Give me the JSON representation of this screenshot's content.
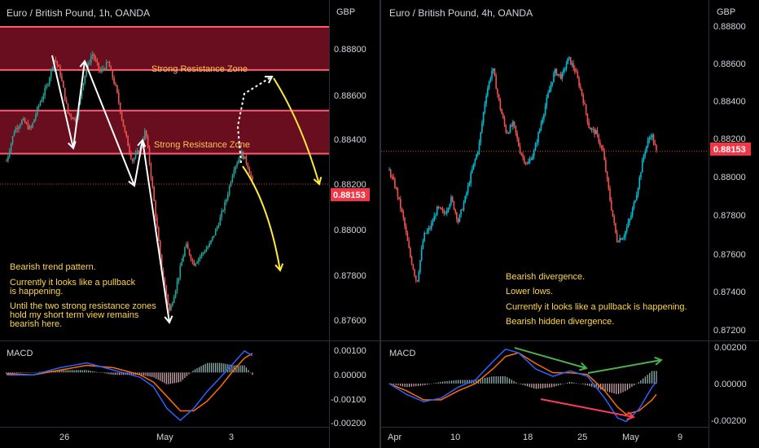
{
  "colors": {
    "background": "#000000",
    "up": "#26a69a",
    "up_bright": "#00bcd4",
    "down": "#ef5350",
    "zone_fill": "#7a1024",
    "zone_line": "#ff5a6e",
    "price_line": "#f23645",
    "annotation_yellow": "#ffeb3b",
    "annotation_white": "#ffffff",
    "macd_line": "#2962ff",
    "signal_line": "#ff6d00",
    "green_arrow": "#4caf50",
    "red_arrow": "#ff3b5c"
  },
  "left": {
    "title": "Euro / British Pound, 1h, OANDA",
    "currency": "GBP",
    "price_ticks": [
      "0.88800",
      "0.88600",
      "0.88400",
      "0.88200",
      "0.88000",
      "0.87800",
      "0.87600"
    ],
    "price_tag": "0.88153",
    "zone_label_top": "Strong Resistance Zone",
    "zone_label_mid": "Strong Resistance Zone",
    "notes": [
      "Bearish trend pattern.",
      "Currently it looks like a pullback",
      "is happening.",
      "Until the two strong resistance zones",
      "hold my short term view remains",
      "bearish here."
    ],
    "macd_label": "MACD",
    "macd_ticks": [
      "0.00100",
      "0.00000",
      "-0.00100",
      "-0.00200"
    ],
    "time_labels": [
      "26",
      "May",
      "3"
    ]
  },
  "right": {
    "title": "Euro / British Pound, 4h, OANDA",
    "currency": "GBP",
    "price_ticks": [
      "0.88800",
      "0.88600",
      "0.88400",
      "0.88200",
      "0.88000",
      "0.87800",
      "0.87600",
      "0.87400",
      "0.87200"
    ],
    "price_tag": "0.88153",
    "notes": [
      "Bearish divergence.",
      "Lower lows.",
      "Currently it looks like a pullback is happening.",
      "Bearish hidden divergence."
    ],
    "macd_label": "MACD",
    "macd_ticks": [
      "0.00200",
      "0.00000",
      "-0.00200"
    ],
    "time_labels": [
      "Apr",
      "10",
      "18",
      "25",
      "May",
      "9"
    ]
  },
  "chart_data": [
    {
      "type": "candlestick",
      "title": "Euro / British Pound, 1h, OANDA",
      "ylabel": "GBP",
      "ylim": [
        0.8752,
        0.8882
      ],
      "last_price": 0.88153,
      "resistance_zones": [
        [
          0.8863,
          0.8881
        ],
        [
          0.8828,
          0.8846
        ]
      ],
      "close_path": [
        [
          0,
          0.8825
        ],
        [
          6,
          0.8838
        ],
        [
          12,
          0.8842
        ],
        [
          18,
          0.8838
        ],
        [
          24,
          0.8848
        ],
        [
          30,
          0.8856
        ],
        [
          36,
          0.8868
        ],
        [
          40,
          0.8862
        ],
        [
          46,
          0.8845
        ],
        [
          52,
          0.8842
        ],
        [
          58,
          0.886
        ],
        [
          64,
          0.887
        ],
        [
          70,
          0.8862
        ],
        [
          76,
          0.8866
        ],
        [
          82,
          0.8855
        ],
        [
          88,
          0.8838
        ],
        [
          94,
          0.8825
        ],
        [
          100,
          0.883
        ],
        [
          104,
          0.8838
        ],
        [
          110,
          0.881
        ],
        [
          116,
          0.878
        ],
        [
          122,
          0.8762
        ],
        [
          128,
          0.8775
        ],
        [
          134,
          0.879
        ],
        [
          140,
          0.8782
        ],
        [
          146,
          0.8786
        ],
        [
          152,
          0.879
        ],
        [
          158,
          0.8798
        ],
        [
          164,
          0.8808
        ],
        [
          170,
          0.8822
        ],
        [
          176,
          0.8828
        ],
        [
          180,
          0.8824
        ],
        [
          184,
          0.8816
        ]
      ],
      "macd": {
        "ylim": [
          -0.0022,
          0.0012
        ],
        "macd_line": [
          [
            0,
            -0.0001
          ],
          [
            20,
            -0.0001
          ],
          [
            40,
            0.0002
          ],
          [
            60,
            0.0004
          ],
          [
            80,
            0.0001
          ],
          [
            100,
            -0.0002
          ],
          [
            110,
            -0.0006
          ],
          [
            120,
            -0.0015
          ],
          [
            130,
            -0.002
          ],
          [
            140,
            -0.0015
          ],
          [
            150,
            -0.0008
          ],
          [
            160,
            -0.0002
          ],
          [
            170,
            0.0004
          ],
          [
            178,
            0.0009
          ],
          [
            184,
            0.0007
          ]
        ],
        "signal_line": [
          [
            0,
            -5e-05
          ],
          [
            20,
            -0.0001
          ],
          [
            40,
            0.0001
          ],
          [
            60,
            0.0003
          ],
          [
            80,
            0.0002
          ],
          [
            100,
            -0.0001
          ],
          [
            110,
            -0.0004
          ],
          [
            120,
            -0.001
          ],
          [
            130,
            -0.0016
          ],
          [
            140,
            -0.0016
          ],
          [
            150,
            -0.0012
          ],
          [
            160,
            -0.0006
          ],
          [
            170,
            0.0001
          ],
          [
            178,
            0.0006
          ],
          [
            184,
            0.0008
          ]
        ]
      }
    },
    {
      "type": "candlestick",
      "title": "Euro / British Pound, 4h, OANDA",
      "ylabel": "GBP",
      "ylim": [
        0.8717,
        0.8883
      ],
      "last_price": 0.88153,
      "close_path": [
        [
          0,
          0.8805
        ],
        [
          8,
          0.8795
        ],
        [
          16,
          0.878
        ],
        [
          24,
          0.876
        ],
        [
          32,
          0.8745
        ],
        [
          40,
          0.877
        ],
        [
          48,
          0.8775
        ],
        [
          56,
          0.8785
        ],
        [
          64,
          0.8782
        ],
        [
          72,
          0.879
        ],
        [
          80,
          0.8778
        ],
        [
          88,
          0.879
        ],
        [
          96,
          0.8805
        ],
        [
          104,
          0.8818
        ],
        [
          112,
          0.8845
        ],
        [
          120,
          0.886
        ],
        [
          128,
          0.884
        ],
        [
          136,
          0.8825
        ],
        [
          144,
          0.883
        ],
        [
          152,
          0.8815
        ],
        [
          160,
          0.8808
        ],
        [
          168,
          0.8815
        ],
        [
          176,
          0.883
        ],
        [
          184,
          0.8845
        ],
        [
          192,
          0.8858
        ],
        [
          200,
          0.8855
        ],
        [
          208,
          0.8865
        ],
        [
          216,
          0.8858
        ],
        [
          224,
          0.8845
        ],
        [
          232,
          0.8828
        ],
        [
          240,
          0.8825
        ],
        [
          248,
          0.8815
        ],
        [
          256,
          0.879
        ],
        [
          264,
          0.8768
        ],
        [
          272,
          0.877
        ],
        [
          280,
          0.878
        ],
        [
          288,
          0.8795
        ],
        [
          296,
          0.8815
        ],
        [
          304,
          0.8825
        ],
        [
          310,
          0.8815
        ]
      ],
      "macd": {
        "ylim": [
          -0.0023,
          0.0022
        ],
        "macd_line": [
          [
            0,
            0.0
          ],
          [
            20,
            -0.0006
          ],
          [
            40,
            -0.001
          ],
          [
            60,
            -0.0008
          ],
          [
            80,
            -0.0002
          ],
          [
            100,
            0.0002
          ],
          [
            120,
            0.0012
          ],
          [
            135,
            0.0019
          ],
          [
            150,
            0.0017
          ],
          [
            170,
            0.0008
          ],
          [
            190,
            0.0004
          ],
          [
            210,
            0.0007
          ],
          [
            230,
            0.0004
          ],
          [
            250,
            -0.0008
          ],
          [
            265,
            -0.0019
          ],
          [
            275,
            -0.0021
          ],
          [
            290,
            -0.0014
          ],
          [
            305,
            -0.0002
          ],
          [
            310,
            0.0001
          ]
        ],
        "signal_line": [
          [
            0,
            0.0
          ],
          [
            20,
            -0.0004
          ],
          [
            40,
            -0.0009
          ],
          [
            60,
            -0.0009
          ],
          [
            80,
            -0.0004
          ],
          [
            100,
            0.0
          ],
          [
            120,
            0.0008
          ],
          [
            135,
            0.0015
          ],
          [
            150,
            0.0017
          ],
          [
            170,
            0.0011
          ],
          [
            190,
            0.0006
          ],
          [
            210,
            0.0006
          ],
          [
            230,
            0.0005
          ],
          [
            250,
            -0.0004
          ],
          [
            265,
            -0.0013
          ],
          [
            275,
            -0.0017
          ],
          [
            290,
            -0.0015
          ],
          [
            305,
            -0.0009
          ],
          [
            310,
            -0.0006
          ]
        ]
      }
    }
  ]
}
